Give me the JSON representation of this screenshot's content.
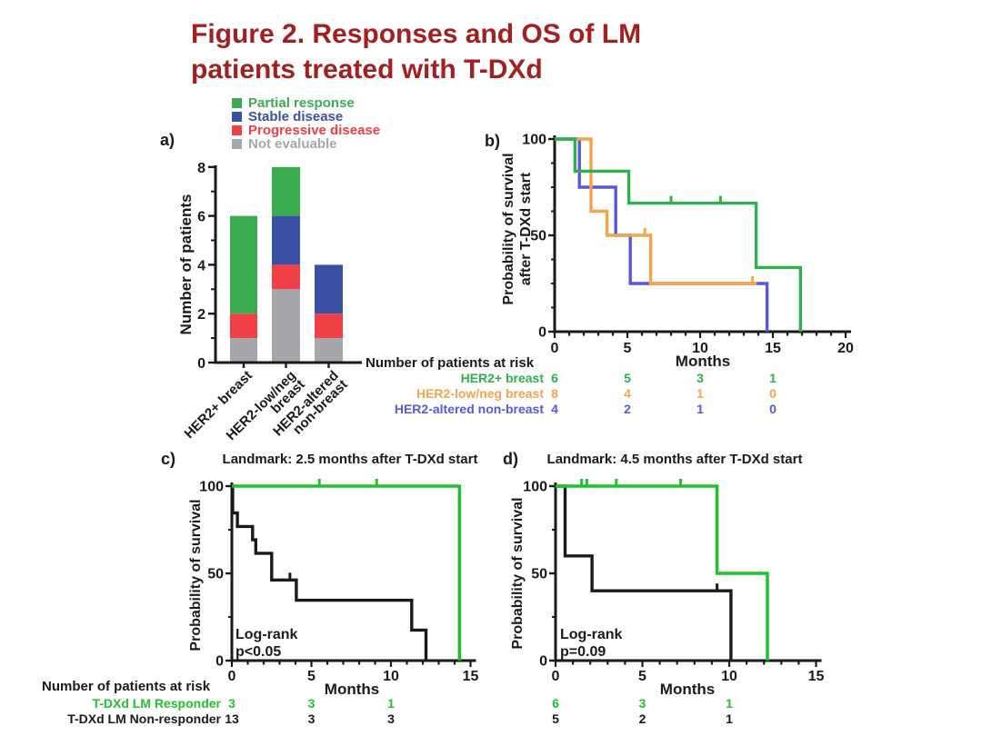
{
  "title": {
    "line1": "Figure 2. Responses and OS of LM",
    "line2": "patients treated with T-DXd",
    "color": "#A32020"
  },
  "panels": {
    "a_label": "a)",
    "b_label": "b)",
    "c_label": "c)",
    "d_label": "d)"
  },
  "legend": {
    "items": [
      {
        "label": "Partial response",
        "color": "#3BAC50"
      },
      {
        "label": "Stable disease",
        "color": "#3A50A3"
      },
      {
        "label": "Progressive disease",
        "color": "#EE4046"
      },
      {
        "label": "Not evaluable",
        "color": "#A5A7AA"
      }
    ]
  },
  "chart_data": [
    {
      "panel": "a",
      "type": "bar",
      "stacked": true,
      "ylabel": "Number of patients",
      "ylim": [
        0,
        8
      ],
      "yticks": [
        0,
        2,
        4,
        6,
        8
      ],
      "categories": [
        "HER2+ breast",
        "HER2-low/neg breast",
        "HER2-altered non-breast"
      ],
      "category_lines": [
        [
          "HER2+ breast"
        ],
        [
          "HER2-low/neg",
          "breast"
        ],
        [
          "HER2-altered",
          "non-breast"
        ]
      ],
      "series": [
        {
          "name": "Not evaluable",
          "color": "#A5A7AA",
          "values": [
            1,
            3,
            1
          ]
        },
        {
          "name": "Progressive disease",
          "color": "#EE4046",
          "values": [
            1,
            1,
            1
          ]
        },
        {
          "name": "Stable disease",
          "color": "#3A50A3",
          "values": [
            0,
            2,
            2
          ]
        },
        {
          "name": "Partial response",
          "color": "#3BAC50",
          "values": [
            4,
            2,
            0
          ]
        }
      ]
    },
    {
      "panel": "b",
      "type": "line",
      "km": true,
      "ylabel_lines": [
        "Probability of survival",
        "after T-DXd start"
      ],
      "xlabel": "Months",
      "xlim": [
        0,
        20
      ],
      "ylim": [
        0,
        100
      ],
      "xticks": [
        0,
        5,
        10,
        15,
        20
      ],
      "yticks": [
        0,
        50,
        100
      ],
      "series": [
        {
          "name": "HER2-altered non-breast",
          "color": "#5857E0",
          "steps": [
            [
              0,
              100
            ],
            [
              1.7,
              100
            ],
            [
              1.7,
              75
            ],
            [
              4.2,
              75
            ],
            [
              4.2,
              50
            ],
            [
              5.2,
              50
            ],
            [
              5.2,
              25
            ],
            [
              14.6,
              25
            ],
            [
              14.6,
              0
            ]
          ],
          "censors": []
        },
        {
          "name": "HER2-low/neg breast",
          "color": "#F4A44C",
          "steps": [
            [
              0,
              100
            ],
            [
              2.5,
              100
            ],
            [
              2.5,
              62.5
            ],
            [
              3.6,
              62.5
            ],
            [
              3.6,
              50
            ],
            [
              6.6,
              50
            ],
            [
              6.6,
              25
            ],
            [
              13.9,
              25
            ]
          ],
          "censors": [
            [
              6.2,
              50
            ],
            [
              13.6,
              25
            ]
          ]
        },
        {
          "name": "HER2+ breast",
          "color": "#2FAF4D",
          "steps": [
            [
              0,
              100
            ],
            [
              1.4,
              100
            ],
            [
              1.4,
              83.3
            ],
            [
              5.1,
              83.3
            ],
            [
              5.1,
              66.7
            ],
            [
              13.85,
              66.7
            ],
            [
              13.85,
              33.3
            ],
            [
              16.9,
              33.3
            ],
            [
              16.9,
              0
            ]
          ],
          "censors": [
            [
              8.0,
              66.7
            ],
            [
              11.4,
              66.7
            ]
          ]
        }
      ],
      "at_risk": {
        "title": "Number of patients at risk",
        "times": [
          0,
          5,
          10,
          15
        ],
        "rows": [
          {
            "label": "HER2+ breast",
            "color": "#2FAF4D",
            "counts": [
              "6",
              "5",
              "3",
              "1"
            ]
          },
          {
            "label": "HER2-low/neg breast",
            "color": "#F4A44C",
            "counts": [
              "8",
              "4",
              "1",
              "0"
            ]
          },
          {
            "label": "HER2-altered non-breast",
            "color": "#5857E0",
            "counts": [
              "4",
              "2",
              "1",
              "0"
            ]
          }
        ]
      }
    },
    {
      "panel": "c",
      "type": "line",
      "km": true,
      "title": "Landmark: 2.5 months after T-DXd start",
      "ylabel": "Probability of survival",
      "xlabel": "Months",
      "xlim": [
        0,
        15
      ],
      "ylim": [
        0,
        100
      ],
      "xticks": [
        0,
        5,
        10,
        15
      ],
      "yticks": [
        0,
        50,
        100
      ],
      "annotation": {
        "line1": "Log-rank",
        "line2": "p<0.05"
      },
      "series": [
        {
          "name": "T-DXd LM Non-responder",
          "color": "#1A1A1A",
          "steps": [
            [
              0,
              100
            ],
            [
              0.05,
              100
            ],
            [
              0.05,
              84.6
            ],
            [
              0.35,
              84.6
            ],
            [
              0.35,
              76.9
            ],
            [
              1.3,
              76.9
            ],
            [
              1.3,
              69.2
            ],
            [
              1.5,
              69.2
            ],
            [
              1.5,
              61.5
            ],
            [
              2.5,
              61.5
            ],
            [
              2.5,
              46.2
            ],
            [
              4.05,
              46.2
            ],
            [
              4.05,
              34.6
            ],
            [
              11.3,
              34.6
            ],
            [
              11.3,
              17.5
            ],
            [
              12.2,
              17.5
            ],
            [
              12.2,
              0
            ]
          ],
          "censors": [
            [
              3.65,
              46.2
            ]
          ]
        },
        {
          "name": "T-DXd LM Responder",
          "color": "#1DC32B",
          "steps": [
            [
              0,
              100
            ],
            [
              14.3,
              100
            ],
            [
              14.3,
              0
            ]
          ],
          "censors": [
            [
              5.5,
              100
            ],
            [
              9.1,
              100
            ]
          ]
        }
      ],
      "at_risk": {
        "title": "Number of patients at risk",
        "times": [
          0,
          5,
          10
        ],
        "rows": [
          {
            "label": "T-DXd LM Responder",
            "color": "#1DC32B",
            "counts": [
              "3",
              "3",
              "1"
            ]
          },
          {
            "label": "T-DXd LM Non-responder",
            "color": "#1A1A1A",
            "counts": [
              "13",
              "3",
              "3"
            ]
          }
        ]
      }
    },
    {
      "panel": "d",
      "type": "line",
      "km": true,
      "title": "Landmark: 4.5 months after T-DXd start",
      "ylabel": "Probability of survival",
      "xlabel": "Months",
      "xlim": [
        0,
        15
      ],
      "ylim": [
        0,
        100
      ],
      "xticks": [
        0,
        5,
        10,
        15
      ],
      "yticks": [
        0,
        50,
        100
      ],
      "annotation": {
        "line1": "Log-rank",
        "line2": "p=0.09"
      },
      "series": [
        {
          "name": "T-DXd LM Non-responder",
          "color": "#1A1A1A",
          "steps": [
            [
              0,
              100
            ],
            [
              0.55,
              100
            ],
            [
              0.55,
              60
            ],
            [
              2.1,
              60
            ],
            [
              2.1,
              40
            ],
            [
              10.1,
              40
            ],
            [
              10.1,
              0
            ]
          ],
          "censors": [
            [
              9.3,
              40
            ]
          ]
        },
        {
          "name": "T-DXd LM Responder",
          "color": "#1DC32B",
          "steps": [
            [
              0,
              100
            ],
            [
              9.3,
              100
            ],
            [
              9.3,
              50
            ],
            [
              12.2,
              50
            ],
            [
              12.2,
              0
            ]
          ],
          "censors": [
            [
              1.5,
              100
            ],
            [
              1.8,
              100
            ],
            [
              3.5,
              100
            ],
            [
              7.2,
              100
            ]
          ]
        }
      ],
      "at_risk": {
        "times": [
          0,
          5,
          10
        ],
        "rows": [
          {
            "label": "",
            "color": "#1DC32B",
            "counts": [
              "6",
              "3",
              "1"
            ]
          },
          {
            "label": "",
            "color": "#1A1A1A",
            "counts": [
              "5",
              "2",
              "1"
            ]
          }
        ]
      }
    }
  ]
}
